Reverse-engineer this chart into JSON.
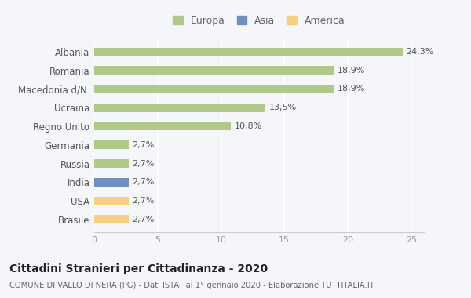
{
  "categories": [
    "Brasile",
    "USA",
    "India",
    "Russia",
    "Germania",
    "Regno Unito",
    "Ucraina",
    "Macedonia d/N.",
    "Romania",
    "Albania"
  ],
  "values": [
    2.7,
    2.7,
    2.7,
    2.7,
    2.7,
    10.8,
    13.5,
    18.9,
    18.9,
    24.3
  ],
  "bar_colors": [
    "#f5d080",
    "#f5d080",
    "#7090c0",
    "#b0c888",
    "#b0c888",
    "#b0c888",
    "#b0c888",
    "#b0c888",
    "#b0c888",
    "#b0c888"
  ],
  "labels": [
    "2,7%",
    "2,7%",
    "2,7%",
    "2,7%",
    "2,7%",
    "10,8%",
    "13,5%",
    "18,9%",
    "18,9%",
    "24,3%"
  ],
  "legend_labels": [
    "Europa",
    "Asia",
    "America"
  ],
  "legend_colors": [
    "#b0c888",
    "#7090c0",
    "#f5d080"
  ],
  "title": "Cittadini Stranieri per Cittadinanza - 2020",
  "subtitle": "COMUNE DI VALLO DI NERA (PG) - Dati ISTAT al 1° gennaio 2020 - Elaborazione TUTTITALIA.IT",
  "xlim": [
    0,
    26
  ],
  "xticks": [
    0,
    5,
    10,
    15,
    20,
    25
  ],
  "background_color": "#f5f6fa",
  "plot_bg_color": "#f5f6fa"
}
